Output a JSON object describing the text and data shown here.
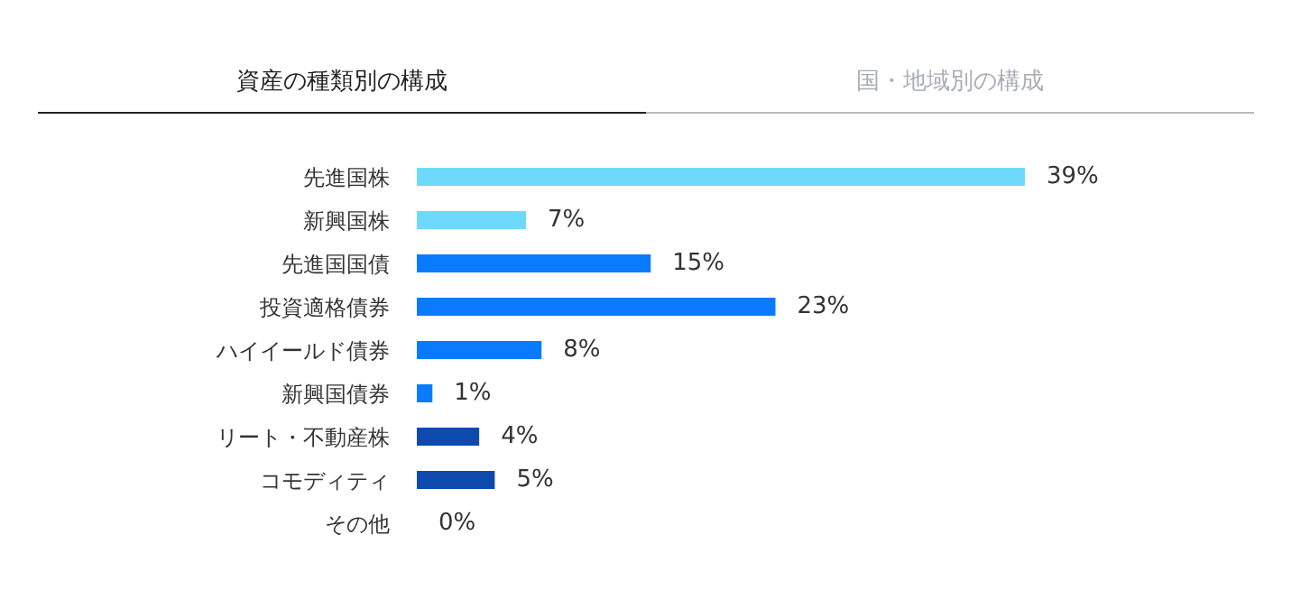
{
  "chart_data": {
    "type": "bar",
    "orientation": "horizontal",
    "title": "資産の種類別の構成",
    "annotations": [
      "国・地域別の構成"
    ],
    "categories": [
      "先進国株",
      "新興国株",
      "先進国国債",
      "投資適格債券",
      "ハイイールド債券",
      "新興国債券",
      "リート・不動産株",
      "コモディティ",
      "その他"
    ],
    "values": [
      39,
      7,
      15,
      23,
      8,
      1,
      4,
      5,
      0
    ],
    "colors": [
      "#6dd9fb",
      "#6dd9fb",
      "#0a7bff",
      "#0a7bff",
      "#0a7bff",
      "#0a7bff",
      "#0d4aae",
      "#0d4aae",
      "#0d4aae"
    ],
    "value_labels": [
      "39%",
      "7%",
      "15%",
      "23%",
      "8%",
      "1%",
      "4%",
      "5%",
      "0%"
    ]
  }
}
